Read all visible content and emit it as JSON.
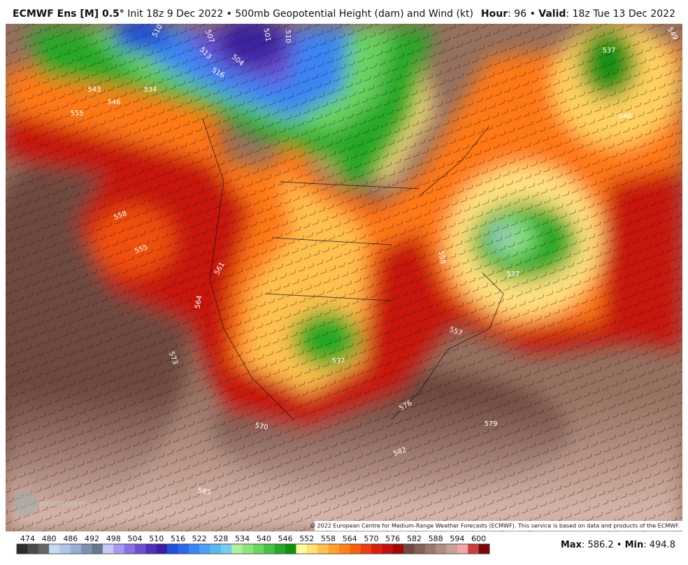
{
  "header": {
    "title_bold": "ECMWF Ens [M] 0.5°",
    "title_rest": "Init 18z 9 Dec 2022 • 500mb Geopotential Height (dam) and Wind (kt)",
    "hour_label": "Hour",
    "hour_value": ": 96 • ",
    "valid_label": "Valid",
    "valid_value": ": 18z Tue 13 Dec 2022"
  },
  "map": {
    "contour_labels": [
      "510",
      "507",
      "501",
      "510",
      "513",
      "516",
      "504",
      "543",
      "534",
      "546",
      "555",
      "558",
      "555",
      "561",
      "564",
      "573",
      "570",
      "537",
      "557",
      "558",
      "537",
      "537",
      "546",
      "576",
      "579",
      "582",
      "585",
      "549"
    ],
    "copyright": "© 2022 European Centre for Medium-Range Weather Forecasts (ECMWF). This service is based on data and products of the ECMWF.",
    "watermark": "WEATHERBELL"
  },
  "colorbar": {
    "labels": [
      "474",
      "480",
      "486",
      "492",
      "498",
      "504",
      "510",
      "516",
      "522",
      "528",
      "534",
      "540",
      "546",
      "552",
      "558",
      "564",
      "570",
      "576",
      "582",
      "588",
      "594",
      "600"
    ],
    "colors": [
      "#2b2b2b",
      "#4a4a4a",
      "#666666",
      "#c8d8f0",
      "#b0c4e4",
      "#98acd4",
      "#7e90b4",
      "#687890",
      "#c8c8f8",
      "#a898f0",
      "#8a70e4",
      "#6c50d0",
      "#5030b8",
      "#3a20a0",
      "#1e50d8",
      "#2a68ec",
      "#3a84f4",
      "#4aa0f4",
      "#5ab8ee",
      "#78ccee",
      "#b0f0a0",
      "#8ee480",
      "#6cd460",
      "#48c040",
      "#28a828",
      "#129012",
      "#fff8a0",
      "#ffe070",
      "#ffc050",
      "#ffa030",
      "#ff8018",
      "#f86010",
      "#e84010",
      "#d82010",
      "#c01010",
      "#a00808",
      "#6e4a40",
      "#846058",
      "#9a766c",
      "#b08c82",
      "#c6a298",
      "#f0a8a8",
      "#c84040",
      "#7a0808"
    ]
  },
  "stats": {
    "max_label": "Max",
    "max_value": ": 586.2 • ",
    "min_label": "Min",
    "min_value": ": 494.8"
  }
}
